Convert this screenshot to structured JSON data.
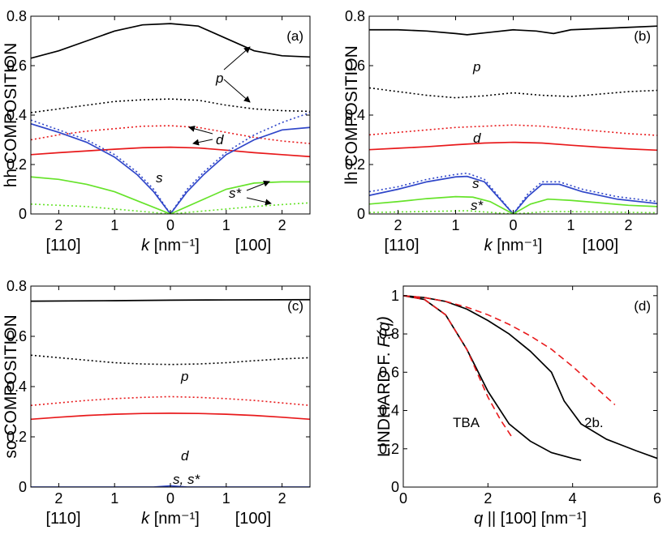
{
  "figure": "4-panel band composition and Lindhard function plot",
  "chart_data": [
    {
      "id": "a",
      "type": "line",
      "title": "",
      "panel_label": "(a)",
      "ylabel": "hh COMPOSITION",
      "xlabel": "k [nm⁻¹]",
      "xlabel_italic": "k",
      "xlabel_unit": "[nm⁻¹]",
      "x_dir_left": "[110]",
      "x_dir_right": "[100]",
      "xlim": [
        -2.5,
        2.5
      ],
      "ylim": [
        0,
        0.8
      ],
      "xticks": [
        -2,
        -1,
        0,
        1,
        2
      ],
      "xtick_labels": [
        "2",
        "1",
        "0",
        "1",
        "2"
      ],
      "yticks": [
        0,
        0.2,
        0.4,
        0.6,
        0.8
      ],
      "ytick_labels": [
        "0",
        "0.2",
        "0.4",
        "0.6",
        "0.8"
      ],
      "series": [
        {
          "name": "p",
          "color": "#000000",
          "dash": "solid",
          "x": [
            -2.5,
            -2,
            -1.5,
            -1,
            -0.5,
            0,
            0.5,
            1,
            1.5,
            2,
            2.5
          ],
          "y": [
            0.63,
            0.66,
            0.7,
            0.74,
            0.765,
            0.77,
            0.76,
            0.71,
            0.66,
            0.64,
            0.635
          ]
        },
        {
          "name": "p-dotted",
          "color": "#000000",
          "dash": "dotted",
          "x": [
            -2.5,
            -2,
            -1.5,
            -1,
            -0.5,
            0,
            0.5,
            1,
            1.5,
            2,
            2.5
          ],
          "y": [
            0.41,
            0.425,
            0.44,
            0.455,
            0.462,
            0.465,
            0.46,
            0.44,
            0.425,
            0.418,
            0.415
          ]
        },
        {
          "name": "d-dotted",
          "color": "#e8191b",
          "dash": "dotted",
          "x": [
            -2.5,
            -2,
            -1.5,
            -1,
            -0.5,
            0,
            0.5,
            1,
            1.5,
            2,
            2.5
          ],
          "y": [
            0.3,
            0.32,
            0.335,
            0.345,
            0.355,
            0.357,
            0.35,
            0.33,
            0.31,
            0.295,
            0.285
          ]
        },
        {
          "name": "d",
          "color": "#e8191b",
          "dash": "solid",
          "x": [
            -2.5,
            -2,
            -1.5,
            -1,
            -0.5,
            0,
            0.5,
            1,
            1.5,
            2,
            2.5
          ],
          "y": [
            0.24,
            0.248,
            0.255,
            0.262,
            0.268,
            0.27,
            0.267,
            0.258,
            0.248,
            0.24,
            0.232
          ]
        },
        {
          "name": "s-dotted",
          "color": "#2f46c9",
          "dash": "dotted",
          "x": [
            -2.5,
            -2,
            -1.5,
            -1,
            -0.6,
            -0.3,
            0,
            0.3,
            0.6,
            1,
            1.5,
            2,
            2.5
          ],
          "y": [
            0.38,
            0.34,
            0.3,
            0.24,
            0.17,
            0.1,
            0.0,
            0.1,
            0.17,
            0.25,
            0.32,
            0.37,
            0.41
          ]
        },
        {
          "name": "s",
          "color": "#2f46c9",
          "dash": "solid",
          "x": [
            -2.5,
            -2,
            -1.5,
            -1,
            -0.6,
            -0.3,
            0,
            0.3,
            0.6,
            1,
            1.5,
            2,
            2.5
          ],
          "y": [
            0.365,
            0.33,
            0.29,
            0.23,
            0.16,
            0.09,
            0.0,
            0.09,
            0.16,
            0.24,
            0.3,
            0.34,
            0.35
          ]
        },
        {
          "name": "s*",
          "color": "#66e32a",
          "dash": "solid",
          "x": [
            -2.5,
            -2,
            -1.5,
            -1,
            -0.5,
            0,
            0.5,
            1,
            1.5,
            2,
            2.5
          ],
          "y": [
            0.15,
            0.14,
            0.12,
            0.09,
            0.045,
            0.0,
            0.05,
            0.1,
            0.125,
            0.13,
            0.13
          ]
        },
        {
          "name": "s*-dotted",
          "color": "#66e32a",
          "dash": "dotted",
          "x": [
            -2.5,
            -2,
            -1.5,
            -1,
            -0.5,
            0,
            0.5,
            1,
            1.5,
            2,
            2.5
          ],
          "y": [
            0.04,
            0.035,
            0.03,
            0.02,
            0.01,
            0.0,
            0.01,
            0.02,
            0.03,
            0.038,
            0.045
          ]
        }
      ],
      "annotations": [
        "p",
        "d",
        "s",
        "s*"
      ]
    },
    {
      "id": "b",
      "type": "line",
      "title": "",
      "panel_label": "(b)",
      "ylabel": "lh COMPOSITION",
      "xlabel_italic": "k",
      "xlabel_unit": "[nm⁻¹]",
      "x_dir_left": "[110]",
      "x_dir_right": "[100]",
      "xlim": [
        -2.5,
        2.5
      ],
      "ylim": [
        0,
        0.8
      ],
      "xticks": [
        -2,
        -1,
        0,
        1,
        2
      ],
      "xtick_labels": [
        "2",
        "1",
        "0",
        "1",
        "2"
      ],
      "yticks": [
        0,
        0.2,
        0.4,
        0.6,
        0.8
      ],
      "ytick_labels": [
        "0",
        "0.2",
        "0.4",
        "0.6",
        "0.8"
      ],
      "series": [
        {
          "name": "p",
          "color": "#000000",
          "dash": "solid",
          "x": [
            -2.5,
            -2,
            -1.5,
            -1,
            -0.8,
            -0.4,
            0,
            0.4,
            0.7,
            1,
            1.5,
            2,
            2.5
          ],
          "y": [
            0.745,
            0.745,
            0.74,
            0.73,
            0.725,
            0.735,
            0.745,
            0.74,
            0.73,
            0.745,
            0.75,
            0.755,
            0.76
          ]
        },
        {
          "name": "p-dotted",
          "color": "#000000",
          "dash": "dotted",
          "x": [
            -2.5,
            -2,
            -1.5,
            -1,
            -0.5,
            0,
            0.5,
            1,
            1.5,
            2,
            2.5
          ],
          "y": [
            0.51,
            0.495,
            0.48,
            0.47,
            0.478,
            0.49,
            0.48,
            0.475,
            0.485,
            0.495,
            0.5
          ]
        },
        {
          "name": "d-dotted",
          "color": "#e8191b",
          "dash": "dotted",
          "x": [
            -2.5,
            -2,
            -1.5,
            -1,
            -0.5,
            0,
            0.5,
            1,
            1.5,
            2,
            2.5
          ],
          "y": [
            0.32,
            0.33,
            0.34,
            0.35,
            0.355,
            0.36,
            0.355,
            0.345,
            0.335,
            0.325,
            0.318
          ]
        },
        {
          "name": "d",
          "color": "#e8191b",
          "dash": "solid",
          "x": [
            -2.5,
            -2,
            -1.5,
            -1,
            -0.5,
            0,
            0.5,
            1,
            1.5,
            2,
            2.5
          ],
          "y": [
            0.26,
            0.266,
            0.272,
            0.28,
            0.287,
            0.29,
            0.287,
            0.278,
            0.27,
            0.263,
            0.258
          ]
        },
        {
          "name": "s-dotted",
          "color": "#2f46c9",
          "dash": "dotted",
          "x": [
            -2.5,
            -2,
            -1.5,
            -1,
            -0.8,
            -0.5,
            -0.25,
            0,
            0.25,
            0.5,
            0.8,
            1.2,
            1.8,
            2.5
          ],
          "y": [
            0.09,
            0.11,
            0.14,
            0.16,
            0.165,
            0.14,
            0.07,
            0.0,
            0.08,
            0.13,
            0.13,
            0.1,
            0.07,
            0.05
          ]
        },
        {
          "name": "s",
          "color": "#2f46c9",
          "dash": "solid",
          "x": [
            -2.5,
            -2,
            -1.5,
            -1,
            -0.8,
            -0.5,
            -0.25,
            0,
            0.25,
            0.5,
            0.8,
            1.2,
            1.8,
            2.5
          ],
          "y": [
            0.075,
            0.1,
            0.13,
            0.15,
            0.152,
            0.13,
            0.065,
            0.0,
            0.07,
            0.12,
            0.12,
            0.09,
            0.06,
            0.042
          ]
        },
        {
          "name": "s*",
          "color": "#66e32a",
          "dash": "solid",
          "x": [
            -2.5,
            -2,
            -1.5,
            -1,
            -0.7,
            -0.4,
            0,
            0.3,
            0.6,
            1,
            1.5,
            2,
            2.5
          ],
          "y": [
            0.04,
            0.05,
            0.062,
            0.07,
            0.068,
            0.05,
            0.0,
            0.04,
            0.06,
            0.055,
            0.045,
            0.035,
            0.03
          ]
        },
        {
          "name": "s*-dotted",
          "color": "#66e32a",
          "dash": "dotted",
          "x": [
            -2.5,
            -1.5,
            -0.8,
            0,
            0.6,
            1.5,
            2.5
          ],
          "y": [
            0.006,
            0.01,
            0.013,
            0.0,
            0.01,
            0.008,
            0.005
          ]
        }
      ],
      "annotations": [
        "p",
        "d",
        "s",
        "s*"
      ]
    },
    {
      "id": "c",
      "type": "line",
      "title": "",
      "panel_label": "(c)",
      "ylabel": "so COMPOSITION",
      "xlabel_italic": "k",
      "xlabel_unit": "[nm⁻¹]",
      "x_dir_left": "[110]",
      "x_dir_right": "[100]",
      "xlim": [
        -2.5,
        2.5
      ],
      "ylim": [
        0,
        0.8
      ],
      "xticks": [
        -2,
        -1,
        0,
        1,
        2
      ],
      "xtick_labels": [
        "2",
        "1",
        "0",
        "1",
        "2"
      ],
      "yticks": [
        0,
        0.2,
        0.4,
        0.6,
        0.8
      ],
      "ytick_labels": [
        "0",
        "0.2",
        "0.4",
        "0.6",
        "0.8"
      ],
      "series": [
        {
          "name": "p",
          "color": "#000000",
          "dash": "solid",
          "x": [
            -2.5,
            -1,
            0,
            1,
            2.5
          ],
          "y": [
            0.74,
            0.742,
            0.744,
            0.745,
            0.746
          ]
        },
        {
          "name": "p-dotted",
          "color": "#000000",
          "dash": "dotted",
          "x": [
            -2.5,
            -2,
            -1.5,
            -1,
            -0.5,
            0,
            0.5,
            1,
            1.5,
            2,
            2.5
          ],
          "y": [
            0.525,
            0.515,
            0.505,
            0.495,
            0.49,
            0.488,
            0.49,
            0.495,
            0.503,
            0.51,
            0.515
          ]
        },
        {
          "name": "d-dotted",
          "color": "#e8191b",
          "dash": "dotted",
          "x": [
            -2.5,
            -2,
            -1.5,
            -1,
            -0.5,
            0,
            0.5,
            1,
            1.5,
            2,
            2.5
          ],
          "y": [
            0.325,
            0.335,
            0.345,
            0.352,
            0.357,
            0.36,
            0.357,
            0.352,
            0.345,
            0.335,
            0.325
          ]
        },
        {
          "name": "d",
          "color": "#e8191b",
          "dash": "solid",
          "x": [
            -2.5,
            -2,
            -1.5,
            -1,
            -0.5,
            0,
            0.5,
            1,
            1.5,
            2,
            2.5
          ],
          "y": [
            0.27,
            0.278,
            0.285,
            0.29,
            0.293,
            0.294,
            0.293,
            0.29,
            0.285,
            0.278,
            0.27
          ]
        },
        {
          "name": "s, s*",
          "color": "#2f46c9",
          "dash": "solid",
          "x": [
            -2.5,
            -0.3,
            0,
            0.3,
            2.5
          ],
          "y": [
            0.0,
            0.0,
            0.005,
            0.0,
            0.0
          ]
        }
      ],
      "annotations": [
        "p",
        "d",
        "s, s*"
      ]
    },
    {
      "id": "d",
      "type": "line",
      "title": "",
      "panel_label": "(d)",
      "ylabel_upright": "LINDHARD F. ",
      "ylabel_italic": "F(q)",
      "xlabel_italic": "q",
      "xlabel_unit": " || [100] [nm⁻¹]",
      "xlim": [
        0,
        6
      ],
      "ylim": [
        0,
        1.05
      ],
      "xticks": [
        0,
        2,
        4,
        6
      ],
      "xtick_labels": [
        "0",
        "2",
        "4",
        "6"
      ],
      "yticks": [
        0,
        0.2,
        0.4,
        0.6,
        0.8,
        1
      ],
      "ytick_labels": [
        "0",
        "0.2",
        "0.4",
        "0.6",
        "0.8",
        "1"
      ],
      "series": [
        {
          "name": "TBA",
          "color": "#000000",
          "dash": "solid",
          "x": [
            0,
            0.5,
            1,
            1.5,
            2,
            2.5,
            3,
            3.5,
            4,
            4.2
          ],
          "y": [
            1.0,
            0.98,
            0.9,
            0.72,
            0.5,
            0.33,
            0.24,
            0.18,
            0.15,
            0.14
          ]
        },
        {
          "name": "TBA-approx",
          "color": "#e8191b",
          "dash": "dashed",
          "x": [
            0,
            0.5,
            1,
            1.5,
            2,
            2.3,
            2.6
          ],
          "y": [
            1.0,
            0.98,
            0.9,
            0.72,
            0.47,
            0.35,
            0.25
          ]
        },
        {
          "name": "2b.",
          "color": "#000000",
          "dash": "solid",
          "x": [
            0,
            0.5,
            1,
            1.5,
            2,
            2.5,
            3,
            3.5,
            3.8,
            4.2,
            4.8,
            5.5,
            6
          ],
          "y": [
            1.0,
            0.99,
            0.97,
            0.93,
            0.87,
            0.8,
            0.71,
            0.6,
            0.45,
            0.33,
            0.25,
            0.19,
            0.15
          ]
        },
        {
          "name": "2b.-approx",
          "color": "#e8191b",
          "dash": "dashed",
          "x": [
            0,
            0.5,
            1,
            1.5,
            2,
            2.5,
            3,
            3.5,
            4,
            4.5,
            5
          ],
          "y": [
            1.0,
            0.99,
            0.97,
            0.94,
            0.9,
            0.85,
            0.79,
            0.72,
            0.63,
            0.53,
            0.43
          ]
        }
      ],
      "annotations": [
        "TBA",
        "2b."
      ]
    }
  ]
}
